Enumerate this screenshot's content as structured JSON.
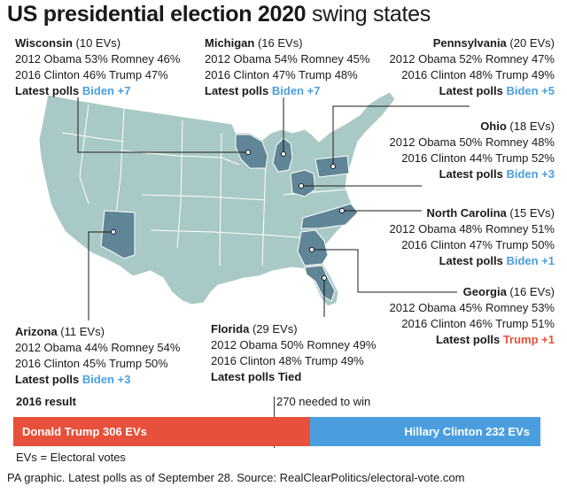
{
  "title": {
    "bold": "US presidential election 2020",
    "light": "swing states"
  },
  "states": {
    "wisconsin": {
      "name": "Wisconsin",
      "evs": "(10 EVs)",
      "line2012": "2012 Obama 53% Romney 46%",
      "line2016": "2016 Clinton 46% Trump 47%",
      "polls_label": "Latest polls",
      "polls_value": "Biden +7"
    },
    "michigan": {
      "name": "Michigan",
      "evs": "(16 EVs)",
      "line2012": "2012 Obama 54% Romney 45%",
      "line2016": "2016 Clinton 47% Trump 48%",
      "polls_label": "Latest polls",
      "polls_value": "Biden +7"
    },
    "pennsylvania": {
      "name": "Pennsylvania",
      "evs": "(20 EVs)",
      "line2012": "2012 Obama 52% Romney 47%",
      "line2016": "2016 Clinton 48% Trump 49%",
      "polls_label": "Latest polls",
      "polls_value": "Biden +5"
    },
    "ohio": {
      "name": "Ohio",
      "evs": "(18 EVs)",
      "line2012": "2012 Obama 50% Romney 48%",
      "line2016": "2016 Clinton 44% Trump 52%",
      "polls_label": "Latest polls",
      "polls_value": "Biden +3"
    },
    "north_carolina": {
      "name": "North Carolina",
      "evs": "(15 EVs)",
      "line2012": "2012 Obama 48% Romney 51%",
      "line2016": "2016 Clinton 47% Trump 50%",
      "polls_label": "Latest polls",
      "polls_value": "Biden +1"
    },
    "georgia": {
      "name": "Georgia",
      "evs": "(16 EVs)",
      "line2012": "2012 Obama 45% Romney 53%",
      "line2016": "2016 Clinton 46% Trump 51%",
      "polls_label": "Latest polls",
      "polls_value": "Trump +1"
    },
    "florida": {
      "name": "Florida",
      "evs": "(29 EVs)",
      "line2012": "2012 Obama 50% Romney 49%",
      "line2016": "2016 Clinton 48% Trump 49%",
      "polls_label": "Latest polls Tied",
      "polls_value": ""
    },
    "arizona": {
      "name": "Arizona",
      "evs": "(11 EVs)",
      "line2012": "2012 Obama 44% Romney 54%",
      "line2016": "2016 Clinton 45% Trump 50%",
      "polls_label": "Latest polls",
      "polls_value": "Biden +3"
    }
  },
  "result": {
    "label": "2016 result",
    "needed": "270 needed to win",
    "trump": "Donald Trump 306 EVs",
    "clinton": "Hillary Clinton 232 EVs",
    "trump_evs": 306,
    "clinton_evs": 232
  },
  "ev_note": "EVs = Electoral votes",
  "source": "PA graphic. Latest polls as of September 28. Source: RealClearPolitics/electoral-vote.com",
  "colors": {
    "land": "#a9c9c6",
    "swing": "#5f8596",
    "trump": "#e7503a",
    "clinton": "#4a9ee0"
  }
}
